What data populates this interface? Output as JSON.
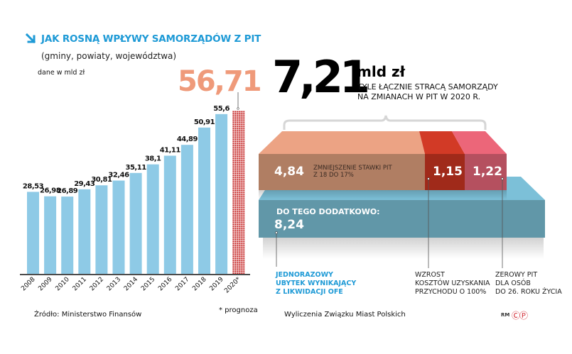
{
  "chart_data": [
    {
      "type": "bar",
      "title": "JAK ROSNĄ WPŁYWY  SAMORZĄDÓW Z PIT",
      "subtitle": "(gminy, powiaty, województwa)",
      "ylabel": "dane w mld zł",
      "xlabel": "",
      "categories": [
        "2008",
        "2009",
        "2010",
        "2011",
        "2012",
        "2013",
        "2014",
        "2015",
        "2016",
        "2017",
        "2018",
        "2019",
        "2020*"
      ],
      "values": [
        28.53,
        26.98,
        26.89,
        29.43,
        30.81,
        32.46,
        35.11,
        38.1,
        41.11,
        44.89,
        50.91,
        55.6,
        56.71
      ],
      "value_labels": [
        "28,53",
        "26,98",
        "26,89",
        "29,43",
        "30,81",
        "32,46",
        "35,11",
        "38,1",
        "41,11",
        "44,89",
        "50,91",
        "55,6",
        "56,71"
      ],
      "forecast_index": 12,
      "highlight_label": "56,71",
      "ylim": [
        0,
        60
      ],
      "grid": false,
      "colors": {
        "bar": "#8ecae6",
        "forecast": "#d32f2f",
        "highlight_text": "#ef9a7a",
        "title": "#1e9ad6"
      }
    },
    {
      "type": "bar",
      "title": "7,21 mld zł — TYLE ŁĄCZNIE STRACĄ SAMORZĄDY NA ZMIANACH W PIT W 2020 R.",
      "orientation": "horizontal-stacked",
      "categories": [
        "Zmniejszenie stawki PIT z 18 do 17%",
        "Wzrost kosztów uzyskania przychodu o 100%",
        "Zerowy PIT dla osób do 26. roku życia"
      ],
      "values": [
        4.84,
        1.15,
        1.22
      ],
      "value_labels": [
        "4,84",
        "1,15",
        "1,22"
      ],
      "total": 7.21,
      "additional": {
        "label": "DO TEGO DODATKOWO:",
        "value": 8.24,
        "value_label": "8,24",
        "note": "Jednorazowy ubytek wynikający z likwidacji OFE"
      },
      "colors": {
        "seg1": "#b07e63",
        "seg2": "#a02a1a",
        "seg3": "#b5505f",
        "additional": "#6197a8"
      }
    }
  ],
  "left": {
    "title": "JAK ROSNĄ WPŁYWY  SAMORZĄDÓW Z PIT",
    "subtitle": "(gminy, powiaty, województwa)",
    "units": "dane w mld zł",
    "forecast_value": "56,71",
    "source": "Źródło: Ministerstwo Finansów",
    "footnote": "* prognoza"
  },
  "right": {
    "total_value": "7,21",
    "total_unit": "mld zł",
    "total_desc_line1": "TYLE ŁĄCZNIE STRACĄ SAMORZĄDY",
    "total_desc_line2": "NA ZMIANACH W PIT W 2020 R.",
    "seg1_value": "4,84",
    "seg1_desc_line1": "ZMNIEJSZENIE STAWKI PIT",
    "seg1_desc_line2": "Z 18 DO 17%",
    "seg2_value": "1,15",
    "seg3_value": "1,22",
    "additional_head": "DO TEGO DODATKOWO:",
    "additional_value": "8,24",
    "note_ofe": [
      "JEDNORAZOWY",
      "UBYTEK WYNIKAJĄCY",
      "Z LIKWIDACJI OFE"
    ],
    "note_costs": [
      "WZROST",
      "KOSZTÓW UZYSKANIA",
      "PRZYCHODU O 100%"
    ],
    "note_zero": [
      "ZEROWY PIT",
      "DLA OSÓB",
      "DO 26. ROKU ŻYCIA"
    ],
    "source": "Wyliczenia Związku Miast Polskich",
    "credit_rm": "RM",
    "credit_cp": "ⒸⓅ"
  }
}
